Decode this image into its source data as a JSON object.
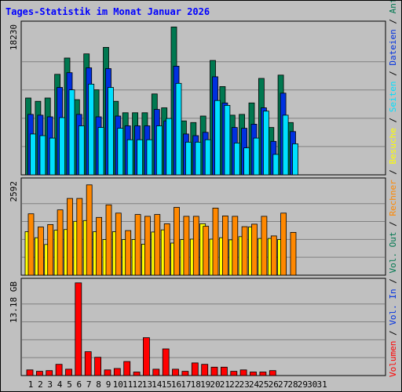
{
  "title": "Tages-Statistik im Monat Januar 2026",
  "colors": {
    "anfragen": "#007850",
    "dateien": "#0030e0",
    "seiten": "#00e0ff",
    "besuche": "#ffff00",
    "rechner": "#ff8800",
    "volumen": "#ff0000",
    "weekend_label": "#008040",
    "weekday_label": "#000000"
  },
  "right_labels": {
    "anfragen": "Anfragen",
    "dateien": "Dateien",
    "seiten": "Seiten",
    "besuche": "Besuche",
    "rechner": "Rechner",
    "vol_out": "Vol. Out",
    "vol_in": "Vol. In",
    "volumen": "Volumen",
    "sep": " / "
  },
  "chart_data": [
    {
      "type": "bar",
      "panel": "requests",
      "categories": [
        "1",
        "2",
        "3",
        "4",
        "5",
        "6",
        "7",
        "8",
        "9",
        "10",
        "11",
        "12",
        "13",
        "14",
        "15",
        "16",
        "17",
        "18",
        "19",
        "20",
        "21",
        "22",
        "23",
        "24",
        "25",
        "26",
        "27",
        "28",
        "29",
        "30",
        "31"
      ],
      "weekend_days": [
        "3",
        "4",
        "10",
        "11",
        "17",
        "18",
        "24",
        "25",
        "31"
      ],
      "ymax_label": "18230",
      "ylim": [
        0,
        18230
      ],
      "grid": true,
      "series": [
        {
          "name": "Anfragen",
          "values": [
            9400,
            9000,
            9400,
            12300,
            14300,
            9200,
            14800,
            10400,
            15600,
            9000,
            7600,
            7600,
            7600,
            9900,
            8200,
            18100,
            6600,
            6400,
            7200,
            14000,
            10800,
            7300,
            7400,
            8800,
            11800,
            5800,
            12200,
            6400,
            0,
            0,
            0
          ]
        },
        {
          "name": "Dateien",
          "values": [
            7400,
            7300,
            7100,
            10700,
            12500,
            7400,
            13100,
            7100,
            13000,
            7200,
            6000,
            6000,
            6000,
            8000,
            6600,
            13300,
            5000,
            4800,
            5200,
            12000,
            8800,
            5800,
            5700,
            6200,
            8200,
            4100,
            10000,
            5300,
            0,
            0,
            0
          ]
        },
        {
          "name": "Seiten",
          "values": [
            5000,
            4800,
            4500,
            7000,
            10400,
            6000,
            11100,
            5800,
            10700,
            5700,
            4300,
            4300,
            4300,
            6000,
            6900,
            11200,
            4000,
            4000,
            4300,
            9100,
            8500,
            3900,
            3300,
            4500,
            7800,
            2500,
            7300,
            3800,
            0,
            0,
            0
          ]
        }
      ]
    },
    {
      "type": "bar",
      "panel": "visits",
      "categories": [
        "1",
        "2",
        "3",
        "4",
        "5",
        "6",
        "7",
        "8",
        "9",
        "10",
        "11",
        "12",
        "13",
        "14",
        "15",
        "16",
        "17",
        "18",
        "19",
        "20",
        "21",
        "22",
        "23",
        "24",
        "25",
        "26",
        "27",
        "28",
        "29",
        "30",
        "31"
      ],
      "ymax_label": "2592",
      "ylim": [
        0,
        2592
      ],
      "grid": true,
      "series": [
        {
          "name": "Besuche",
          "values": [
            1220,
            1050,
            860,
            1260,
            1280,
            1510,
            1530,
            1220,
            1000,
            1220,
            1000,
            1000,
            870,
            1210,
            1270,
            900,
            1000,
            1010,
            1440,
            1010,
            1050,
            990,
            1080,
            1350,
            1030,
            1030,
            1000,
            0,
            0,
            0,
            0
          ]
        },
        {
          "name": "Rechner",
          "values": [
            1720,
            1350,
            1420,
            1830,
            2150,
            2150,
            2530,
            1620,
            1970,
            1740,
            1250,
            1700,
            1650,
            1700,
            1440,
            1900,
            1650,
            1650,
            1370,
            1880,
            1660,
            1650,
            1360,
            1430,
            1650,
            1100,
            1740,
            1200,
            0,
            0,
            0
          ]
        }
      ]
    },
    {
      "type": "bar",
      "panel": "volume",
      "categories": [
        "1",
        "2",
        "3",
        "4",
        "5",
        "6",
        "7",
        "8",
        "9",
        "10",
        "11",
        "12",
        "13",
        "14",
        "15",
        "16",
        "17",
        "18",
        "19",
        "20",
        "21",
        "22",
        "23",
        "24",
        "25",
        "26",
        "27",
        "28",
        "29",
        "30",
        "31"
      ],
      "ymax_label": "13.18 GB",
      "ylim": [
        0,
        13.18
      ],
      "grid": true,
      "series": [
        {
          "name": "Volumen",
          "values": [
            0.8,
            0.6,
            0.7,
            1.6,
            0.9,
            13.2,
            3.4,
            2.6,
            0.8,
            1.0,
            2.0,
            0.5,
            5.4,
            0.9,
            3.8,
            0.9,
            0.6,
            1.8,
            1.6,
            1.2,
            1.2,
            0.6,
            0.8,
            0.5,
            0.5,
            0.7,
            0,
            0,
            0,
            0,
            0
          ]
        }
      ]
    }
  ]
}
